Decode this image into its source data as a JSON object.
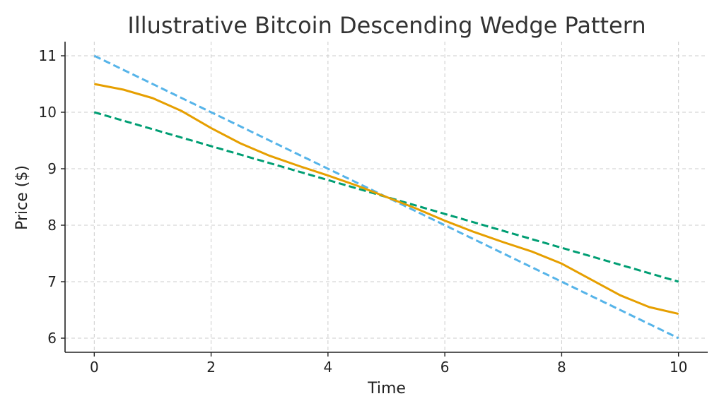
{
  "chart_data": {
    "type": "line",
    "title": "Illustrative Bitcoin Descending Wedge Pattern",
    "xlabel": "Time",
    "ylabel": "Price ($)",
    "xlim": [
      -0.5,
      10.5
    ],
    "ylim": [
      5.75,
      11.25
    ],
    "xticks": [
      0,
      2,
      4,
      6,
      8,
      10
    ],
    "yticks": [
      6,
      7,
      8,
      9,
      10,
      11
    ],
    "grid": true,
    "series": [
      {
        "color": "#56b4e9",
        "style": "dashed",
        "x": [
          0,
          10
        ],
        "y": [
          11,
          6
        ]
      },
      {
        "color": "#009e73",
        "style": "dashed",
        "x": [
          0,
          10
        ],
        "y": [
          10,
          7
        ]
      },
      {
        "color": "#e69f00",
        "style": "solid",
        "x": [
          0,
          0.5,
          1,
          1.5,
          2,
          2.5,
          3,
          3.5,
          4,
          4.5,
          5,
          5.5,
          6,
          6.5,
          7,
          7.5,
          8,
          8.5,
          9,
          9.5,
          10
        ],
        "y": [
          10.5,
          10.4,
          10.25,
          10.02,
          9.72,
          9.45,
          9.23,
          9.05,
          8.88,
          8.7,
          8.5,
          8.3,
          8.08,
          7.88,
          7.7,
          7.53,
          7.32,
          7.04,
          6.76,
          6.55,
          6.43
        ]
      }
    ]
  }
}
